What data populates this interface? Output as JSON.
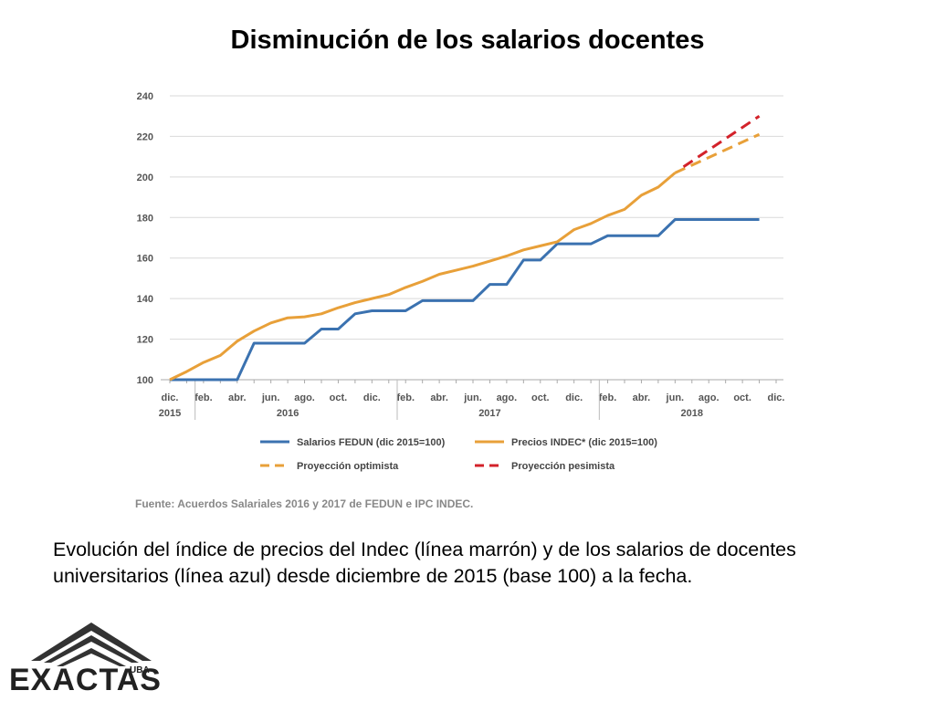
{
  "slide": {
    "title": "Disminución de los salarios docentes",
    "caption": "Evolución del índice de precios del Indec (línea marrón) y de los salarios de docentes universitarios (línea azul) desde diciembre de 2015 (base 100) a la fecha."
  },
  "logo": {
    "word": "EXACTAS",
    "sub": "UBA"
  },
  "chart_data": {
    "type": "line",
    "x_labels": [
      "dic.",
      "",
      "feb.",
      "",
      "abr.",
      "",
      "jun.",
      "",
      "ago.",
      "",
      "oct.",
      "",
      "dic.",
      "",
      "feb.",
      "",
      "abr.",
      "",
      "jun.",
      "",
      "ago.",
      "",
      "oct.",
      "",
      "dic.",
      "",
      "feb.",
      "",
      "abr.",
      "",
      "jun.",
      "",
      "ago.",
      "",
      "oct.",
      "",
      "dic."
    ],
    "year_labels": [
      {
        "label": "2015",
        "at": 0
      },
      {
        "label": "2016",
        "at": 7
      },
      {
        "label": "2017",
        "at": 19
      },
      {
        "label": "2018",
        "at": 31
      }
    ],
    "year_separators": [
      1.5,
      13.5,
      25.5
    ],
    "ylim": [
      100,
      240
    ],
    "yticks": [
      100,
      120,
      140,
      160,
      180,
      200,
      220,
      240
    ],
    "grid": true,
    "series": [
      {
        "name": "Salarios FEDUN (dic 2015=100)",
        "color": "#3b72b0",
        "dash": false,
        "points": [
          [
            0,
            100
          ],
          [
            8,
            100
          ],
          [
            10,
            118
          ],
          [
            16,
            118
          ],
          [
            18,
            125
          ],
          [
            20,
            125
          ],
          [
            22,
            132.5
          ],
          [
            24,
            134
          ],
          [
            28,
            134
          ],
          [
            30,
            139
          ],
          [
            36,
            139
          ],
          [
            38,
            147
          ],
          [
            40,
            147
          ],
          [
            42,
            159
          ],
          [
            44,
            159
          ],
          [
            46,
            167
          ],
          [
            50,
            167
          ],
          [
            52,
            171
          ],
          [
            58,
            171
          ],
          [
            60,
            179
          ],
          [
            70,
            179
          ]
        ]
      },
      {
        "name": "Precios INDEC* (dic 2015=100)",
        "color": "#e8a039",
        "dash": false,
        "points": [
          [
            0,
            100
          ],
          [
            2,
            104
          ],
          [
            4,
            108.5
          ],
          [
            6,
            112
          ],
          [
            8,
            119
          ],
          [
            10,
            124
          ],
          [
            12,
            128
          ],
          [
            14,
            130.5
          ],
          [
            16,
            131
          ],
          [
            18,
            132.5
          ],
          [
            20,
            135.5
          ],
          [
            22,
            138
          ],
          [
            24,
            140
          ],
          [
            26,
            142
          ],
          [
            28,
            145.5
          ],
          [
            30,
            148.5
          ],
          [
            32,
            152
          ],
          [
            34,
            154
          ],
          [
            36,
            156
          ],
          [
            38,
            158.5
          ],
          [
            40,
            161
          ],
          [
            42,
            164
          ],
          [
            44,
            166
          ],
          [
            46,
            168
          ],
          [
            48,
            174
          ],
          [
            50,
            177
          ],
          [
            52,
            181
          ],
          [
            54,
            184
          ],
          [
            56,
            191
          ],
          [
            58,
            195
          ],
          [
            60,
            202
          ]
        ]
      },
      {
        "name": "Proyección optimista",
        "color": "#e8a039",
        "dash": true,
        "points": [
          [
            60,
            202
          ],
          [
            70,
            221
          ]
        ]
      },
      {
        "name": "Proyección pesimista",
        "color": "#d3222a",
        "dash": true,
        "points": [
          [
            61,
            205
          ],
          [
            70,
            230
          ]
        ]
      }
    ],
    "source": "Fuente: Acuerdos Salariales 2016 y 2017 de FEDUN e IPC INDEC."
  }
}
